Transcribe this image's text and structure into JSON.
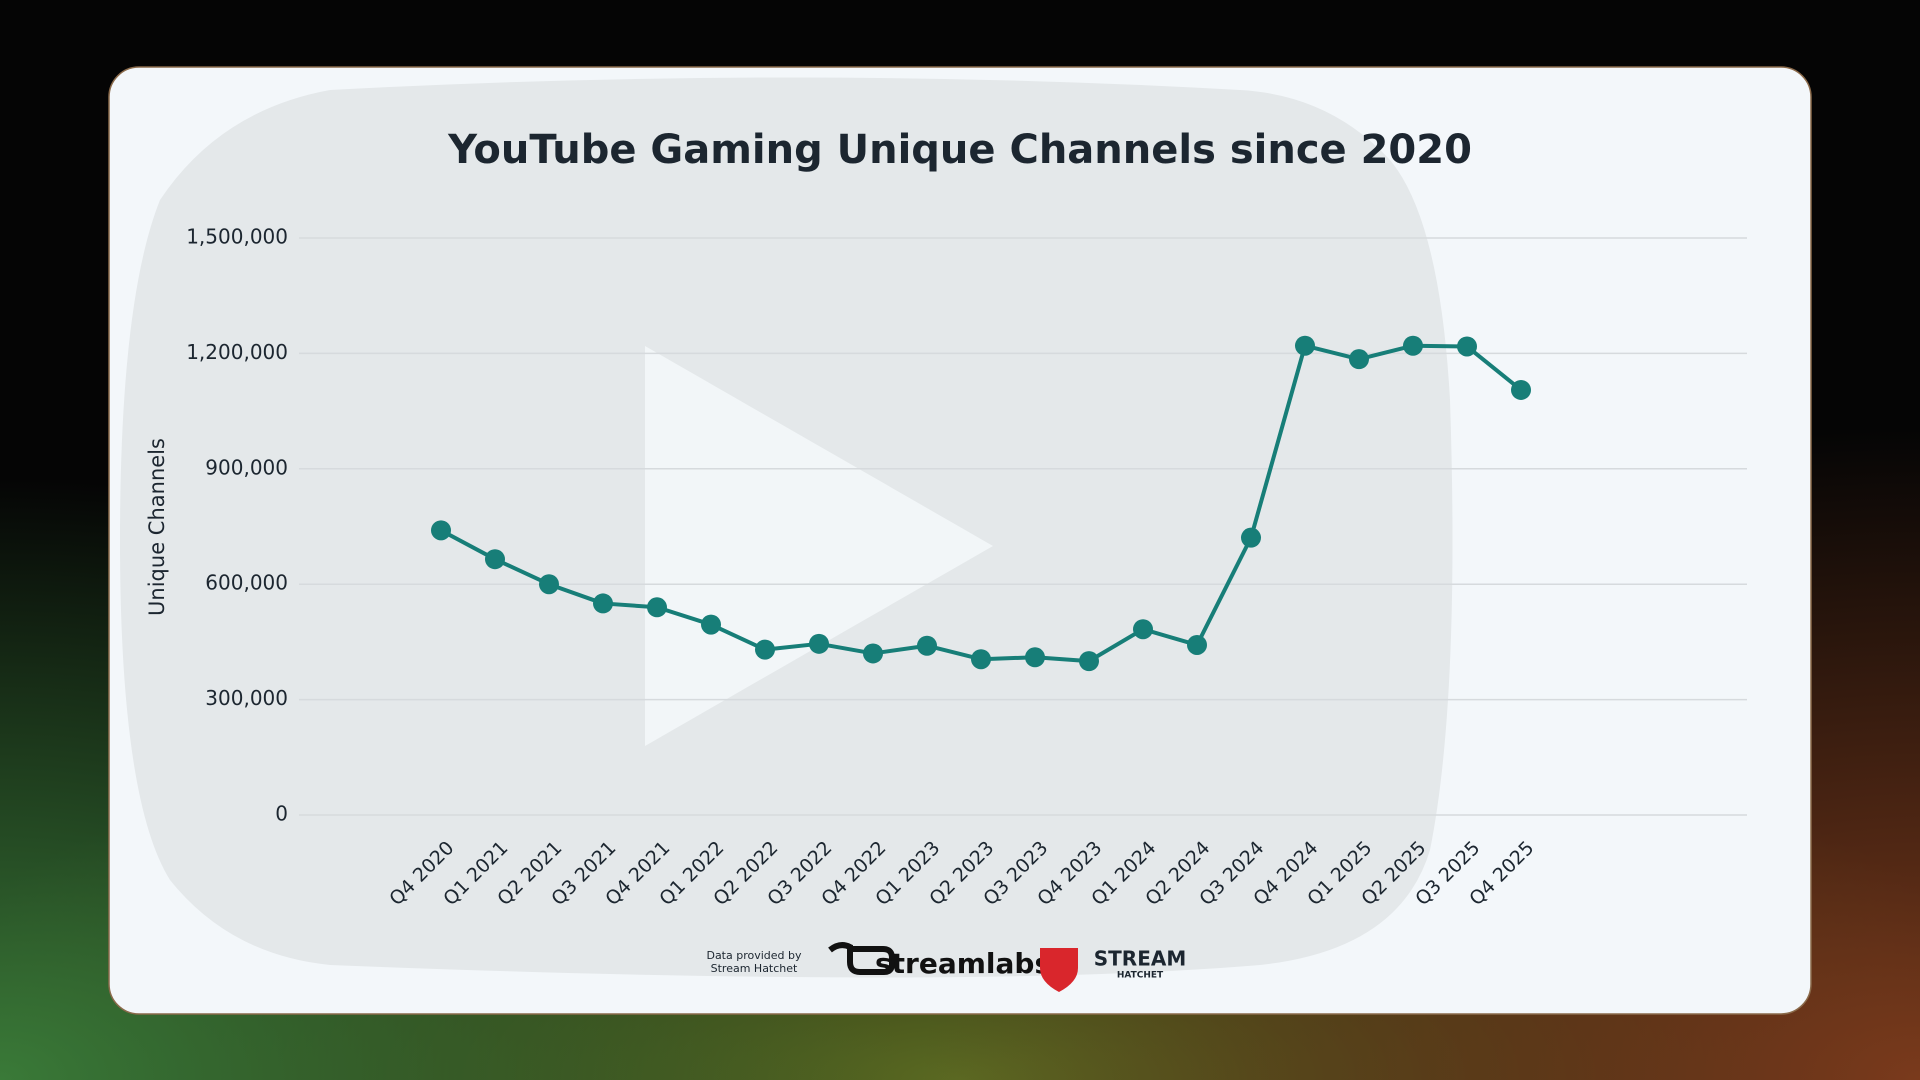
{
  "chart_data": {
    "type": "line",
    "title": "YouTube Gaming Unique Channels since 2020",
    "y_label": "Unique Channels",
    "categories": [
      "Q4 2020",
      "Q1 2021",
      "Q2 2021",
      "Q3 2021",
      "Q4 2021",
      "Q1 2022",
      "Q2 2022",
      "Q3 2022",
      "Q4 2022",
      "Q1 2023",
      "Q2 2023",
      "Q3 2023",
      "Q4 2023",
      "Q1 2024",
      "Q2 2024",
      "Q3 2024",
      "Q4 2024",
      "Q1 2025",
      "Q2 2025",
      "Q3 2025",
      "Q4 2025"
    ],
    "values": [
      740000,
      665000,
      600000,
      550000,
      540000,
      495000,
      430000,
      445000,
      420000,
      440000,
      405000,
      410000,
      400000,
      483000,
      442000,
      721000,
      1220000,
      1185000,
      1220000,
      1218000,
      1105000
    ],
    "color": "#177e78",
    "ylim": [
      0,
      1500000
    ],
    "yticks": [
      0,
      {
        "value": 300000,
        "label": "300,000"
      },
      {
        "value": 600000,
        "label": "600,000"
      },
      {
        "value": 900000,
        "label": "900,000"
      },
      {
        "value": 1200000,
        "label": "1,200,000"
      },
      {
        "value": 1500000,
        "label": "1,500,000"
      }
    ],
    "grid": true
  },
  "footer": {
    "credit_line1": "Data provided by",
    "credit_line2": "Stream Hatchet",
    "logo1": "streamlabs",
    "logo2_top": "STREAM",
    "logo2_bottom": "HATCHET"
  }
}
